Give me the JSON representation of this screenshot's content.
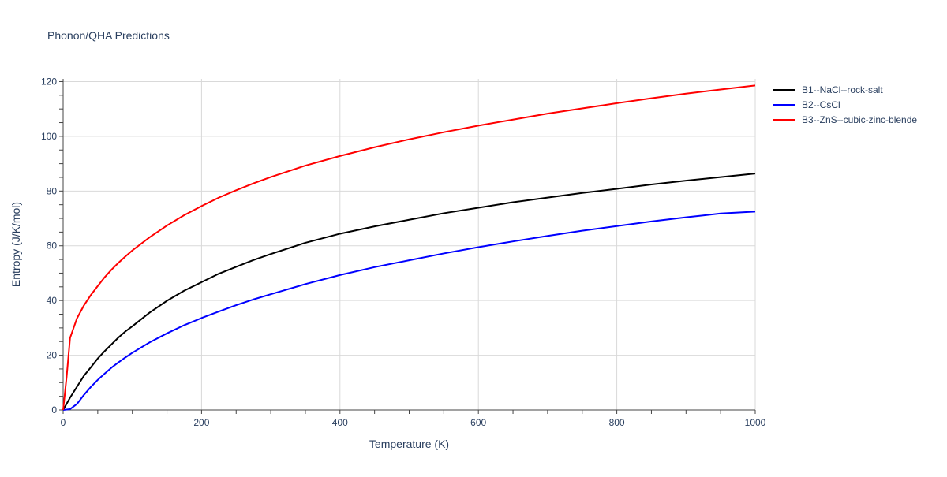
{
  "chart_data": {
    "type": "line",
    "title": "Phonon/QHA Predictions",
    "xlabel": "Temperature (K)",
    "ylabel": "Entropy (J/K/mol)",
    "xlim": [
      0,
      1000
    ],
    "ylim": [
      0,
      121
    ],
    "xticks": [
      0,
      200,
      400,
      600,
      800,
      1000
    ],
    "yticks": [
      0,
      20,
      40,
      60,
      80,
      100,
      120
    ],
    "grid": true,
    "legend_position": "top-right",
    "series": [
      {
        "name": "B1--NaCl--rock-salt",
        "color": "#000000",
        "x": [
          0,
          10,
          20,
          30,
          40,
          50,
          60,
          70,
          80,
          90,
          100,
          125,
          150,
          175,
          200,
          225,
          250,
          275,
          300,
          350,
          400,
          450,
          500,
          550,
          600,
          650,
          700,
          750,
          800,
          850,
          900,
          950,
          1000
        ],
        "y": [
          0,
          4.5,
          8.5,
          12.5,
          15.6,
          18.8,
          21.5,
          24,
          26.5,
          28.7,
          30.6,
          35.6,
          39.9,
          43.6,
          46.7,
          49.8,
          52.3,
          54.8,
          57,
          61.1,
          64.4,
          67.1,
          69.5,
          71.9,
          73.9,
          75.9,
          77.6,
          79.3,
          80.8,
          82.4,
          83.8,
          85.1,
          86.4
        ]
      },
      {
        "name": "B2--CsCl",
        "color": "#0000ff",
        "x": [
          0,
          10,
          20,
          30,
          40,
          50,
          60,
          70,
          80,
          90,
          100,
          125,
          150,
          175,
          200,
          225,
          250,
          275,
          300,
          350,
          400,
          450,
          500,
          550,
          600,
          650,
          700,
          750,
          800,
          850,
          900,
          950,
          1000
        ],
        "y": [
          0,
          0.3,
          2.2,
          5.5,
          8.4,
          11,
          13.3,
          15.5,
          17.4,
          19.2,
          20.9,
          24.7,
          28,
          31,
          33.6,
          36,
          38.3,
          40.4,
          42.3,
          46,
          49.3,
          52.2,
          54.7,
          57.2,
          59.5,
          61.6,
          63.6,
          65.5,
          67.2,
          68.9,
          70.4,
          71.8,
          72.5
        ]
      },
      {
        "name": "B3--ZnS--cubic-zinc-blende",
        "color": "#ff0000",
        "x": [
          0,
          5,
          10,
          20,
          30,
          40,
          50,
          60,
          70,
          80,
          90,
          100,
          125,
          150,
          175,
          200,
          225,
          250,
          275,
          300,
          350,
          400,
          450,
          500,
          550,
          600,
          650,
          700,
          750,
          800,
          850,
          900,
          950,
          1000
        ],
        "y": [
          0,
          12,
          26.3,
          33.5,
          38.2,
          42,
          45.3,
          48.5,
          51.3,
          53.8,
          56.1,
          58.3,
          63.1,
          67.4,
          71.2,
          74.5,
          77.6,
          80.3,
          82.8,
          85.1,
          89.3,
          92.8,
          96,
          98.9,
          101.5,
          103.9,
          106.1,
          108.3,
          110.2,
          112.1,
          113.9,
          115.6,
          117.1,
          118.6
        ]
      }
    ]
  }
}
